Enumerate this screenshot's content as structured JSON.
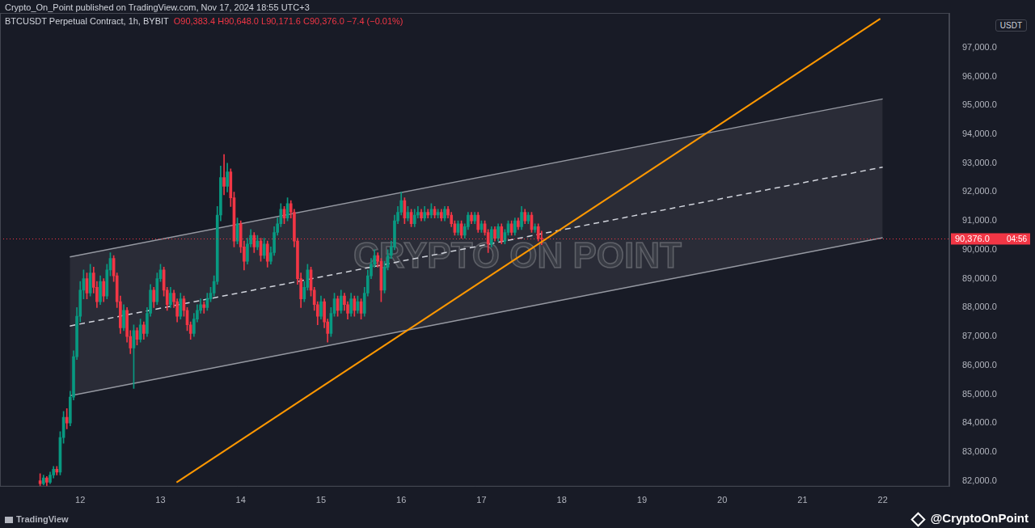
{
  "chart_data": {
    "type": "candlestick",
    "subtitle": "Crypto_On_Point published on TradingView.com, Nov 17, 2024 18:55 UTC+3",
    "title": "BTCUSDT Perpetual Contract, 1h, BYBIT",
    "ohlc_label": "O90,383.4 H90,648.0 L90,171.6 C90,376.0 −7.4 (−0.01%)",
    "currency": "USDT",
    "watermark": "CRYPTO ON POINT",
    "logo_text": "TradingView",
    "credit": "@CryptoOnPoint",
    "last_price": {
      "value": 90376.0,
      "label": "90,376.0",
      "countdown": "04:56"
    },
    "color": {
      "up": "#089981",
      "down": "#f23645"
    },
    "grid": false,
    "xlim": [
      11,
      22.83
    ],
    "xticks": [
      12,
      13,
      14,
      15,
      16,
      17,
      18,
      19,
      20,
      21,
      22
    ],
    "ylim": [
      81800,
      98200
    ],
    "yticks": [
      {
        "value": 82000,
        "label": "82,000.0"
      },
      {
        "value": 83000,
        "label": "83,000.0"
      },
      {
        "value": 84000,
        "label": "84,000.0"
      },
      {
        "value": 85000,
        "label": "85,000.0"
      },
      {
        "value": 86000,
        "label": "86,000.0"
      },
      {
        "value": 87000,
        "label": "87,000.0"
      },
      {
        "value": 88000,
        "label": "88,000.0"
      },
      {
        "value": 89000,
        "label": "89,000.0"
      },
      {
        "value": 90000,
        "label": "90,000.0"
      },
      {
        "value": 91000,
        "label": "91,000.0"
      },
      {
        "value": 92000,
        "label": "92,000.0"
      },
      {
        "value": 93000,
        "label": "93,000.0"
      },
      {
        "value": 94000,
        "label": "94,000.0"
      },
      {
        "value": 95000,
        "label": "95,000.0"
      },
      {
        "value": 96000,
        "label": "96,000.0"
      },
      {
        "value": 97000,
        "label": "97,000.0"
      }
    ],
    "channel": {
      "upper": [
        [
          11.87,
          89750
        ],
        [
          22.0,
          95222
        ]
      ],
      "middle": {
        "points": [
          [
            11.87,
            87361
          ],
          [
            22.0,
            92861
          ]
        ],
        "line_style": "dashed"
      },
      "lower": [
        [
          11.87,
          84944
        ],
        [
          22.0,
          90417
        ]
      ]
    },
    "trendline": {
      "points": [
        [
          13.2,
          81944
        ],
        [
          21.97,
          98000
        ]
      ],
      "color": "#ff9800"
    },
    "x": [
      11.5,
      11.542,
      11.583,
      11.625,
      11.667,
      11.708,
      11.75,
      11.792,
      11.833,
      11.875,
      11.917,
      11.958,
      12,
      12.042,
      12.083,
      12.125,
      12.167,
      12.208,
      12.25,
      12.292,
      12.333,
      12.375,
      12.417,
      12.458,
      12.5,
      12.542,
      12.583,
      12.625,
      12.667,
      12.708,
      12.75,
      12.792,
      12.833,
      12.875,
      12.917,
      12.958,
      13,
      13.042,
      13.083,
      13.125,
      13.167,
      13.208,
      13.25,
      13.292,
      13.333,
      13.375,
      13.417,
      13.458,
      13.5,
      13.542,
      13.583,
      13.625,
      13.667,
      13.708,
      13.75,
      13.792,
      13.833,
      13.875,
      13.917,
      13.958,
      14,
      14.042,
      14.083,
      14.125,
      14.167,
      14.208,
      14.25,
      14.292,
      14.333,
      14.375,
      14.417,
      14.458,
      14.5,
      14.542,
      14.583,
      14.625,
      14.667,
      14.708,
      14.75,
      14.792,
      14.833,
      14.875,
      14.917,
      14.958,
      15,
      15.042,
      15.083,
      15.125,
      15.167,
      15.208,
      15.25,
      15.292,
      15.333,
      15.375,
      15.417,
      15.458,
      15.5,
      15.542,
      15.583,
      15.625,
      15.667,
      15.708,
      15.75,
      15.792,
      15.833,
      15.875,
      15.917,
      15.958,
      16,
      16.042,
      16.083,
      16.125,
      16.167,
      16.208,
      16.25,
      16.292,
      16.333,
      16.375,
      16.417,
      16.458,
      16.5,
      16.542,
      16.583,
      16.625,
      16.667,
      16.708,
      16.75,
      16.792,
      16.833,
      16.875,
      16.917,
      16.958,
      17,
      17.042,
      17.083,
      17.125,
      17.167,
      17.208,
      17.25,
      17.292,
      17.333,
      17.375,
      17.417,
      17.458,
      17.5,
      17.542,
      17.583,
      17.625,
      17.667,
      17.708,
      17.75
    ],
    "open": [
      82000,
      81900,
      82100,
      81950,
      82200,
      82400,
      82300,
      83500,
      84200,
      84000,
      84900,
      86300,
      87700,
      88600,
      89000,
      88500,
      89200,
      88700,
      88200,
      88900,
      88400,
      89300,
      89700,
      89100,
      88200,
      87300,
      87900,
      87000,
      86600,
      87200,
      86900,
      87400,
      87100,
      87800,
      88600,
      88200,
      89000,
      89300,
      88600,
      88100,
      88500,
      88200,
      87700,
      88300,
      87900,
      87400,
      87100,
      87600,
      87900,
      88100,
      88000,
      88300,
      88500,
      88900,
      91200,
      92500,
      92200,
      92700,
      91800,
      90300,
      90900,
      90100,
      89600,
      90200,
      90500,
      90100,
      90300,
      89800,
      90200,
      89600,
      89900,
      90600,
      90900,
      91400,
      91100,
      91600,
      91300,
      90300,
      89000,
      88300,
      88700,
      89300,
      88600,
      88100,
      87700,
      88200,
      87500,
      87100,
      87800,
      88300,
      87900,
      88400,
      88100,
      87800,
      88300,
      87900,
      88200,
      87800,
      88500,
      89100,
      89500,
      89800,
      89600,
      88600,
      89400,
      89800,
      90100,
      91000,
      91300,
      91700,
      91100,
      91300,
      90900,
      91200,
      91300,
      91100,
      91300,
      91200,
      91400,
      91200,
      91300,
      91100,
      91400,
      91200,
      90900,
      90600,
      90900,
      90500,
      90800,
      91200,
      91000,
      91200,
      90700,
      90900,
      90600,
      90200,
      90700,
      90400,
      90800,
      90300,
      90600,
      90900,
      90600,
      91000,
      90800,
      91300,
      91000,
      91200,
      90700,
      90800,
      90383.4
    ],
    "high": [
      82250,
      82200,
      82150,
      82300,
      82500,
      82500,
      83700,
      84400,
      84500,
      85100,
      86500,
      88000,
      88900,
      89300,
      89200,
      89500,
      89400,
      88900,
      89100,
      89000,
      89500,
      89900,
      89800,
      89200,
      88400,
      88100,
      88000,
      87200,
      87400,
      87300,
      87600,
      87500,
      88000,
      88800,
      88700,
      89200,
      89500,
      89400,
      88700,
      88700,
      88600,
      88300,
      88500,
      88400,
      88000,
      87500,
      87800,
      88100,
      88300,
      88200,
      88500,
      88700,
      89100,
      91500,
      92900,
      93300,
      93000,
      92800,
      92000,
      91100,
      91000,
      90300,
      90400,
      90700,
      90600,
      90500,
      90400,
      90400,
      90300,
      90100,
      90800,
      91100,
      91600,
      91500,
      91800,
      91700,
      91400,
      90400,
      89200,
      88900,
      89500,
      89400,
      88700,
      88200,
      88400,
      88300,
      87600,
      88000,
      88500,
      88400,
      88600,
      88500,
      88200,
      88500,
      88400,
      88400,
      88300,
      88700,
      89300,
      89700,
      90000,
      89900,
      89700,
      89600,
      90000,
      90300,
      91200,
      91500,
      92000,
      91800,
      91500,
      91400,
      91400,
      91500,
      91400,
      91500,
      91400,
      91600,
      91500,
      91400,
      91400,
      91500,
      91500,
      91300,
      91000,
      91000,
      91000,
      90900,
      91300,
      91300,
      91300,
      91300,
      91000,
      91000,
      90700,
      90800,
      90800,
      90900,
      90900,
      90700,
      91000,
      91000,
      91100,
      91100,
      91500,
      91400,
      91300,
      91300,
      90900,
      90900,
      90648
    ],
    "low": [
      81800,
      81850,
      81800,
      81900,
      82100,
      82200,
      82200,
      83300,
      83800,
      83900,
      84800,
      86200,
      87500,
      88300,
      88300,
      88400,
      88500,
      88000,
      88100,
      88200,
      88300,
      89100,
      88900,
      88000,
      87100,
      87200,
      86800,
      86400,
      85200,
      86700,
      86800,
      86900,
      87000,
      87700,
      88000,
      88100,
      88900,
      88400,
      87900,
      88000,
      88000,
      87500,
      87600,
      87700,
      87200,
      86900,
      87000,
      87500,
      87800,
      87800,
      87900,
      88200,
      88400,
      88800,
      91000,
      91900,
      92000,
      91500,
      90100,
      90200,
      89900,
      89300,
      89500,
      90100,
      89900,
      90000,
      89600,
      89700,
      89400,
      89500,
      89800,
      90500,
      90800,
      90900,
      91000,
      91100,
      90100,
      88800,
      88000,
      88200,
      88600,
      88400,
      87900,
      87400,
      87600,
      87300,
      86800,
      87000,
      87700,
      87700,
      87800,
      87900,
      87600,
      87700,
      87700,
      87800,
      87600,
      87700,
      88400,
      89000,
      89400,
      89400,
      88200,
      88500,
      89300,
      89700,
      90000,
      90900,
      91200,
      90900,
      91000,
      90800,
      90800,
      91100,
      91000,
      91000,
      91100,
      91100,
      91100,
      91100,
      91000,
      91000,
      91100,
      90800,
      90500,
      90500,
      90400,
      90400,
      90700,
      90900,
      90900,
      90600,
      90600,
      90500,
      89900,
      90100,
      90300,
      90300,
      90200,
      90200,
      90500,
      90500,
      90500,
      90700,
      90700,
      90900,
      90900,
      90600,
      90600,
      90300,
      90171.6
    ],
    "close": [
      81900,
      82100,
      81950,
      82200,
      82400,
      82300,
      83500,
      84200,
      84000,
      84900,
      86300,
      87700,
      88600,
      89000,
      88500,
      89200,
      88700,
      88200,
      88900,
      88400,
      89300,
      89700,
      89100,
      88200,
      87300,
      87900,
      87000,
      86600,
      87200,
      86900,
      87400,
      87100,
      87800,
      88600,
      88200,
      89000,
      89300,
      88600,
      88100,
      88500,
      88200,
      87700,
      88300,
      87900,
      87400,
      87100,
      87600,
      87900,
      88100,
      88000,
      88300,
      88500,
      88900,
      91200,
      92500,
      92200,
      92700,
      91800,
      90300,
      90900,
      90100,
      89600,
      90200,
      90500,
      90100,
      90300,
      89800,
      90200,
      89600,
      89900,
      90600,
      90900,
      91400,
      91100,
      91600,
      91300,
      90300,
      89000,
      88300,
      88700,
      89300,
      88600,
      88100,
      87700,
      88200,
      87500,
      87100,
      87800,
      88300,
      87900,
      88400,
      88100,
      87800,
      88300,
      87900,
      88200,
      87800,
      88500,
      89100,
      89500,
      89800,
      89600,
      88600,
      89400,
      89800,
      90100,
      91000,
      91300,
      91700,
      91100,
      91300,
      90900,
      91200,
      91300,
      91100,
      91300,
      91200,
      91400,
      91200,
      91300,
      91100,
      91400,
      91200,
      90900,
      90600,
      90900,
      90500,
      90800,
      91200,
      91000,
      91200,
      90700,
      90900,
      90600,
      90200,
      90700,
      90400,
      90800,
      90300,
      90600,
      90900,
      90600,
      91000,
      90800,
      91300,
      91000,
      91200,
      90700,
      90800,
      90383.4,
      90376
    ]
  }
}
